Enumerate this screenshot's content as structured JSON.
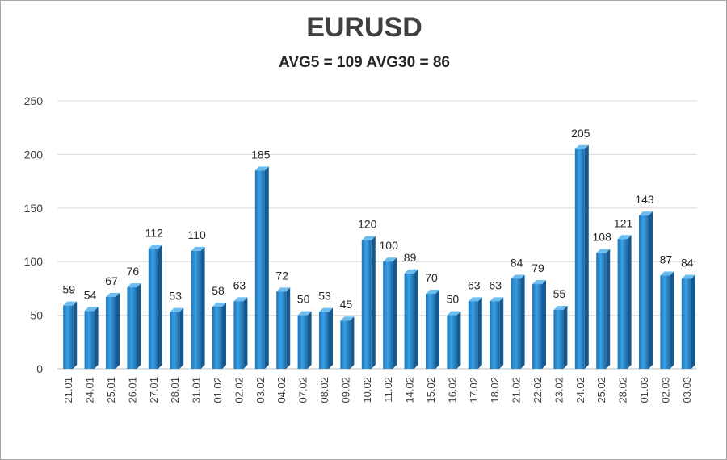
{
  "chart_data": {
    "type": "bar",
    "title": "EURUSD",
    "subtitle": "AVG5 = 109 AVG30 = 86",
    "xlabel": "",
    "ylabel": "",
    "ylim": [
      0,
      250
    ],
    "yticks": [
      0,
      50,
      100,
      150,
      200,
      250
    ],
    "grid": true,
    "legend": "none",
    "bar_color": "#2a8fd6",
    "categories": [
      "21.01",
      "24.01",
      "25.01",
      "26.01",
      "27.01",
      "28.01",
      "31.01",
      "01.02",
      "02.02",
      "03.02",
      "04.02",
      "07.02",
      "08.02",
      "09.02",
      "10.02",
      "11.02",
      "14.02",
      "15.02",
      "16.02",
      "17.02",
      "18.02",
      "21.02",
      "22.02",
      "23.02",
      "24.02",
      "25.02",
      "28.02",
      "01.03",
      "02.03",
      "03.03"
    ],
    "values": [
      59,
      54,
      67,
      76,
      112,
      53,
      110,
      58,
      63,
      185,
      72,
      50,
      53,
      45,
      120,
      100,
      89,
      70,
      50,
      63,
      63,
      84,
      79,
      55,
      205,
      108,
      121,
      143,
      87,
      84
    ]
  }
}
